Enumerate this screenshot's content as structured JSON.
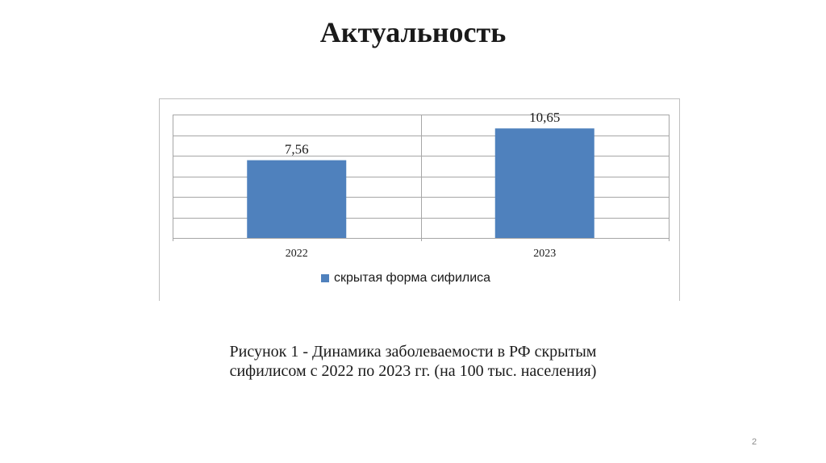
{
  "slide": {
    "title": "Актуальность",
    "caption": "Рисунок 1 - Динамика заболеваемости в РФ скрытым сифилисом с 2022 по 2023 гг. (на 100 тыс. населения)",
    "page_number": "2"
  },
  "colors": {
    "bar": "#4f81bd",
    "grid": "#a6a6a6",
    "frame": "#bfbfbf"
  },
  "chart_data": {
    "type": "bar",
    "categories": [
      "2022",
      "2023"
    ],
    "series": [
      {
        "name": "скрытая форма сифилиса",
        "values": [
          7.56,
          10.65
        ],
        "labels": [
          "7,56",
          "10,65"
        ]
      }
    ],
    "ylim": [
      0,
      12
    ],
    "y_gridline_step": 2,
    "y_tick_labels_shown": false,
    "grid": true,
    "legend_position": "bottom",
    "title": "",
    "xlabel": "",
    "ylabel": ""
  }
}
